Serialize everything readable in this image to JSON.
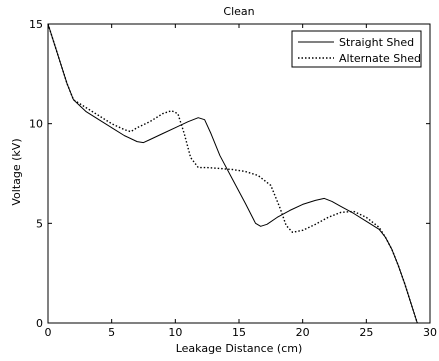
{
  "chart_data": {
    "type": "line",
    "title": "Clean",
    "xlabel": "Leakage Distance  (cm)",
    "ylabel": "Voltage (kV)",
    "xlim": [
      0,
      30
    ],
    "ylim": [
      0,
      15
    ],
    "xticks": [
      0,
      5,
      10,
      15,
      20,
      25,
      30
    ],
    "yticks": [
      0,
      5,
      10,
      15
    ],
    "grid": false,
    "legend_position": "top-right",
    "series": [
      {
        "name": "Straight Shed",
        "style": "solid",
        "color": "#000000",
        "x": [
          0,
          0.5,
          1.0,
          1.5,
          2.0,
          3.0,
          4.0,
          5.0,
          6.0,
          7.0,
          7.5,
          8.0,
          9.0,
          10.0,
          11.0,
          11.8,
          12.3,
          12.8,
          13.5,
          14.5,
          15.5,
          16.3,
          16.7,
          17.2,
          18.0,
          19.0,
          20.0,
          21.0,
          21.7,
          22.3,
          23.0,
          24.0,
          25.0,
          26.0,
          26.5,
          27.0,
          27.5,
          28.0,
          28.5,
          28.8,
          29.0
        ],
        "y": [
          15.0,
          14.0,
          13.0,
          12.0,
          11.2,
          10.6,
          10.2,
          9.8,
          9.4,
          9.1,
          9.05,
          9.2,
          9.5,
          9.8,
          10.1,
          10.3,
          10.2,
          9.5,
          8.4,
          7.2,
          6.0,
          5.0,
          4.85,
          4.95,
          5.3,
          5.65,
          5.95,
          6.15,
          6.25,
          6.1,
          5.85,
          5.5,
          5.1,
          4.7,
          4.3,
          3.7,
          2.9,
          2.0,
          1.0,
          0.4,
          0.0
        ]
      },
      {
        "name": "Alternate Shed",
        "style": "dotted",
        "color": "#000000",
        "x": [
          0,
          0.5,
          1.0,
          1.5,
          2.0,
          3.0,
          4.0,
          5.0,
          6.0,
          6.5,
          7.0,
          8.0,
          9.0,
          9.7,
          10.2,
          10.7,
          11.2,
          11.8,
          12.5,
          13.5,
          14.5,
          15.5,
          16.5,
          17.5,
          18.2,
          18.7,
          19.2,
          20.0,
          21.0,
          22.0,
          23.0,
          24.0,
          25.0,
          26.0,
          26.5,
          27.0,
          27.5,
          28.0,
          28.5,
          28.8,
          29.0
        ],
        "y": [
          15.0,
          14.0,
          13.0,
          12.0,
          11.2,
          10.8,
          10.4,
          10.0,
          9.7,
          9.6,
          9.8,
          10.1,
          10.5,
          10.65,
          10.5,
          9.5,
          8.3,
          7.8,
          7.8,
          7.75,
          7.7,
          7.6,
          7.4,
          6.9,
          5.8,
          4.9,
          4.55,
          4.65,
          4.95,
          5.3,
          5.55,
          5.6,
          5.3,
          4.8,
          4.3,
          3.7,
          2.9,
          2.0,
          1.0,
          0.4,
          0.0
        ]
      }
    ]
  }
}
